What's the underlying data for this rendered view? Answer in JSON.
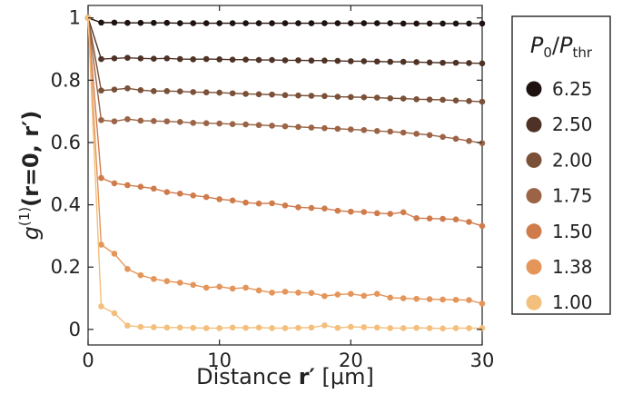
{
  "chart_data": {
    "type": "line",
    "xlabel_main": "Distance ",
    "xlabel_bold": "r′",
    "xlabel_unit": " [μm]",
    "ylabel_g": "g",
    "ylabel_sup": "(1)",
    "ylabel_args": "(r=0, r′)",
    "xlim": [
      0,
      30
    ],
    "ylim": [
      -0.05,
      1.04
    ],
    "x_ticks": [
      0,
      10,
      20,
      30
    ],
    "x_tick_labels": [
      "0",
      "10",
      "20",
      "30"
    ],
    "y_ticks": [
      0,
      0.2,
      0.4,
      0.6,
      0.8,
      1
    ],
    "y_tick_labels": [
      "0",
      "0.2",
      "0.4",
      "0.6",
      "0.8",
      "1"
    ],
    "legend_title_base": "P",
    "legend_title_sub0": "0",
    "legend_title_slash": "/",
    "legend_title_subthr": "thr",
    "legend_position": "right",
    "grid": false,
    "x": [
      0,
      1,
      2,
      3,
      4,
      5,
      6,
      7,
      8,
      9,
      10,
      11,
      12,
      13,
      14,
      15,
      16,
      17,
      18,
      19,
      20,
      21,
      22,
      23,
      24,
      25,
      26,
      27,
      28,
      29,
      30
    ],
    "series": [
      {
        "name": "6.25",
        "color": "#1e1210",
        "values": [
          1.0,
          0.985,
          0.985,
          0.984,
          0.984,
          0.984,
          0.984,
          0.983,
          0.983,
          0.983,
          0.983,
          0.983,
          0.983,
          0.983,
          0.983,
          0.983,
          0.983,
          0.983,
          0.983,
          0.983,
          0.983,
          0.983,
          0.983,
          0.983,
          0.982,
          0.982,
          0.982,
          0.982,
          0.982,
          0.982,
          0.982
        ]
      },
      {
        "name": "2.50",
        "color": "#4e3226",
        "values": [
          1.0,
          0.868,
          0.87,
          0.872,
          0.87,
          0.869,
          0.87,
          0.868,
          0.867,
          0.868,
          0.867,
          0.866,
          0.866,
          0.865,
          0.865,
          0.864,
          0.864,
          0.863,
          0.863,
          0.862,
          0.861,
          0.861,
          0.86,
          0.859,
          0.859,
          0.858,
          0.857,
          0.856,
          0.856,
          0.855,
          0.854
        ]
      },
      {
        "name": "2.00",
        "color": "#7b5038",
        "values": [
          1.0,
          0.767,
          0.77,
          0.774,
          0.768,
          0.765,
          0.765,
          0.764,
          0.762,
          0.761,
          0.76,
          0.758,
          0.756,
          0.755,
          0.754,
          0.752,
          0.751,
          0.75,
          0.749,
          0.747,
          0.746,
          0.745,
          0.744,
          0.742,
          0.741,
          0.739,
          0.738,
          0.737,
          0.735,
          0.733,
          0.731
        ]
      },
      {
        "name": "1.75",
        "color": "#9b6446",
        "values": [
          1.0,
          0.672,
          0.668,
          0.675,
          0.67,
          0.669,
          0.668,
          0.666,
          0.663,
          0.662,
          0.661,
          0.659,
          0.658,
          0.656,
          0.654,
          0.652,
          0.65,
          0.648,
          0.646,
          0.644,
          0.642,
          0.64,
          0.637,
          0.635,
          0.632,
          0.628,
          0.624,
          0.618,
          0.612,
          0.605,
          0.598
        ]
      },
      {
        "name": "1.50",
        "color": "#d07b4c",
        "values": [
          1.0,
          0.486,
          0.469,
          0.463,
          0.458,
          0.452,
          0.441,
          0.436,
          0.43,
          0.425,
          0.418,
          0.414,
          0.407,
          0.404,
          0.405,
          0.398,
          0.392,
          0.39,
          0.388,
          0.381,
          0.378,
          0.377,
          0.373,
          0.371,
          0.376,
          0.357,
          0.356,
          0.355,
          0.353,
          0.345,
          0.332
        ]
      },
      {
        "name": "1.38",
        "color": "#e4955a",
        "values": [
          1.0,
          0.272,
          0.243,
          0.194,
          0.174,
          0.162,
          0.155,
          0.15,
          0.143,
          0.134,
          0.137,
          0.131,
          0.134,
          0.125,
          0.118,
          0.121,
          0.118,
          0.117,
          0.107,
          0.112,
          0.114,
          0.108,
          0.114,
          0.102,
          0.1,
          0.098,
          0.097,
          0.096,
          0.095,
          0.094,
          0.083
        ]
      },
      {
        "name": "1.00",
        "color": "#f3bf7c",
        "values": [
          1.0,
          0.074,
          0.052,
          0.012,
          0.008,
          0.007,
          0.006,
          0.006,
          0.005,
          0.004,
          0.004,
          0.006,
          0.005,
          0.006,
          0.004,
          0.004,
          0.005,
          0.006,
          0.013,
          0.005,
          0.008,
          0.007,
          0.006,
          0.004,
          0.004,
          0.005,
          0.004,
          0.003,
          0.004,
          0.004,
          0.004
        ]
      }
    ]
  }
}
